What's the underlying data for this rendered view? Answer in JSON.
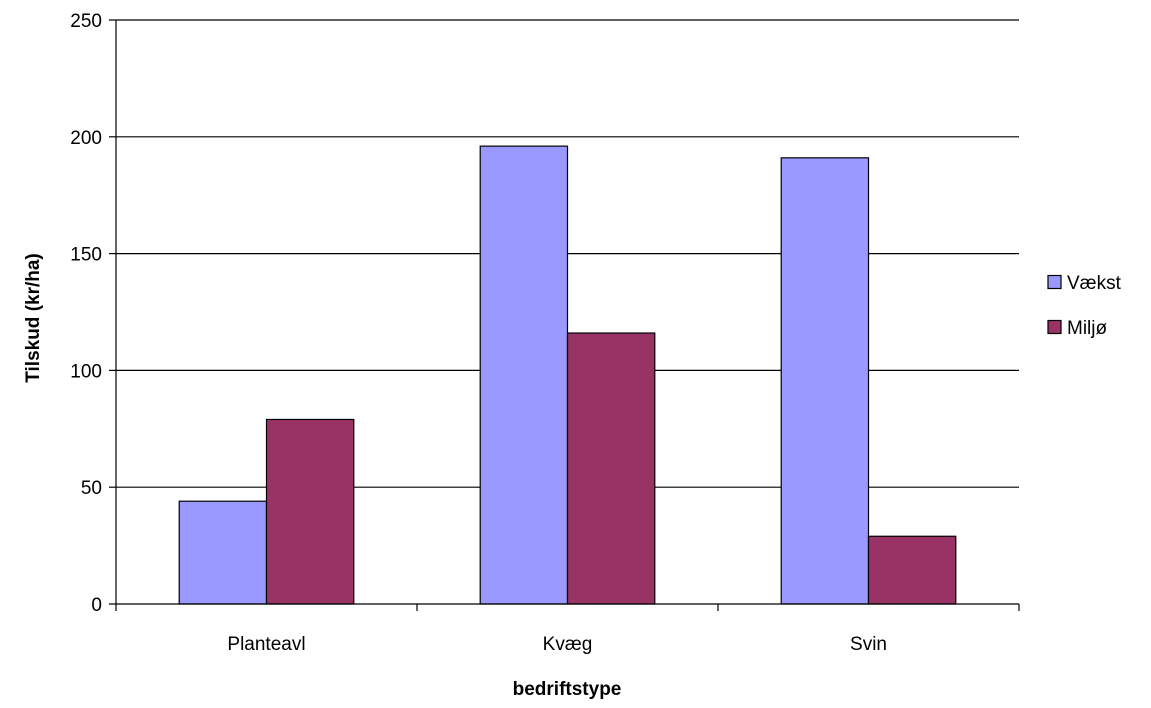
{
  "chart_data": {
    "type": "bar",
    "title": "",
    "xlabel": "bedriftstype",
    "ylabel": "Tilskud (kr/ha)",
    "categories": [
      "Planteavl",
      "Kvæg",
      "Svin"
    ],
    "series": [
      {
        "name": "Vækst",
        "values": [
          44,
          196,
          191
        ],
        "color": "#9999FF"
      },
      {
        "name": "Miljø",
        "values": [
          79,
          116,
          29
        ],
        "color": "#993366"
      }
    ],
    "ylim": [
      0,
      250
    ],
    "yticks": [
      0,
      50,
      100,
      150,
      200,
      250
    ],
    "grid": true,
    "legend": "right"
  }
}
